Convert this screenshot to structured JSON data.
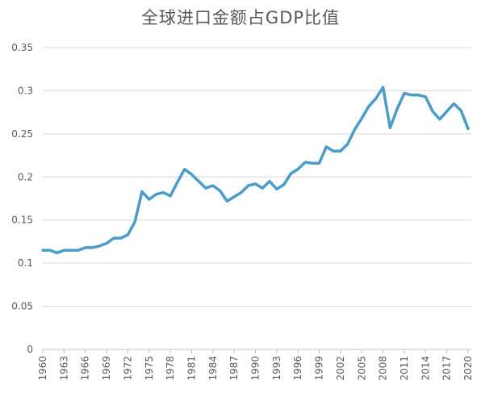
{
  "chart_data": {
    "type": "line",
    "title": "全球进口金额占GDP比值",
    "xlabel": "",
    "ylabel": "",
    "ylim": [
      0,
      0.35
    ],
    "yticks": [
      "0",
      "0.05",
      "0.1",
      "0.15",
      "0.2",
      "0.25",
      "0.3",
      "0.35"
    ],
    "xtick_labels": [
      "1960",
      "1963",
      "1966",
      "1969",
      "1972",
      "1975",
      "1978",
      "1981",
      "1984",
      "1987",
      "1990",
      "1993",
      "1996",
      "1999",
      "2002",
      "2005",
      "2008",
      "2011",
      "2014",
      "2017",
      "2020"
    ],
    "grid": true,
    "legend": "none",
    "series_color": "#4b9cc8",
    "series": [
      {
        "x": [
          1960,
          1961,
          1962,
          1963,
          1964,
          1965,
          1966,
          1967,
          1968,
          1969,
          1970,
          1971,
          1972,
          1973,
          1974,
          1975,
          1976,
          1977,
          1978,
          1979,
          1980,
          1981,
          1982,
          1983,
          1984,
          1985,
          1986,
          1987,
          1988,
          1989,
          1990,
          1991,
          1992,
          1993,
          1994,
          1995,
          1996,
          1997,
          1998,
          1999,
          2000,
          2001,
          2002,
          2003,
          2004,
          2005,
          2006,
          2007,
          2008,
          2009,
          2010,
          2011,
          2012,
          2013,
          2014,
          2015,
          2016,
          2017,
          2018,
          2019,
          2020
        ],
        "values": [
          0.115,
          0.115,
          0.112,
          0.115,
          0.115,
          0.115,
          0.118,
          0.118,
          0.12,
          0.123,
          0.129,
          0.129,
          0.133,
          0.148,
          0.183,
          0.174,
          0.18,
          0.182,
          0.178,
          0.194,
          0.209,
          0.203,
          0.195,
          0.187,
          0.19,
          0.184,
          0.172,
          0.177,
          0.182,
          0.19,
          0.192,
          0.187,
          0.195,
          0.186,
          0.191,
          0.204,
          0.209,
          0.217,
          0.216,
          0.216,
          0.235,
          0.23,
          0.23,
          0.238,
          0.255,
          0.268,
          0.282,
          0.291,
          0.304,
          0.257,
          0.279,
          0.297,
          0.295,
          0.295,
          0.293,
          0.276,
          0.267,
          0.276,
          0.285,
          0.277,
          0.256
        ]
      }
    ]
  }
}
